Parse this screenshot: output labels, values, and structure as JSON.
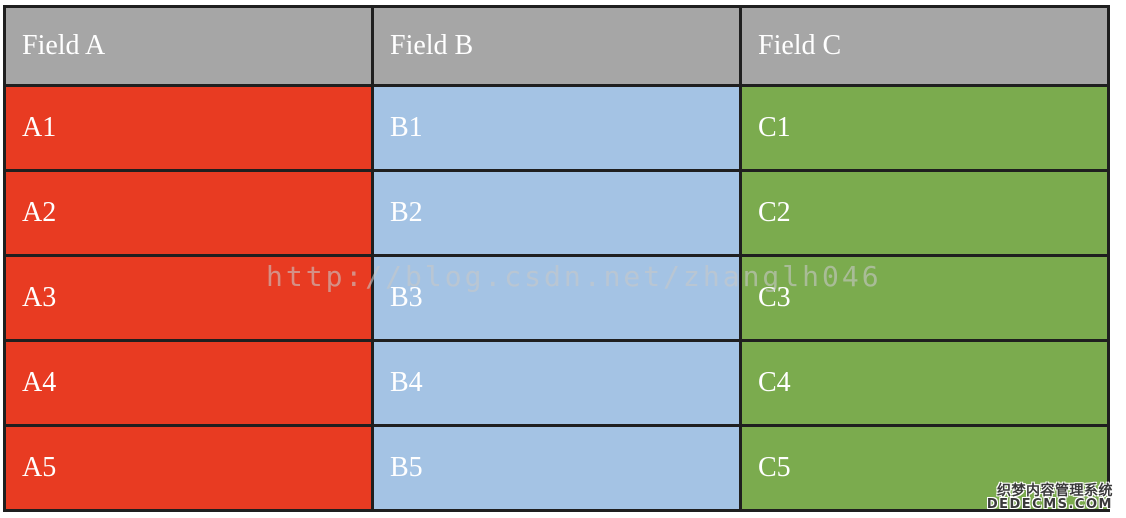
{
  "table": {
    "headers": [
      "Field A",
      "Field B",
      "Field C"
    ],
    "rows": [
      [
        "A1",
        "B1",
        "C1"
      ],
      [
        "A2",
        "B2",
        "C2"
      ],
      [
        "A3",
        "B3",
        "C3"
      ],
      [
        "A4",
        "B4",
        "C4"
      ],
      [
        "A5",
        "B5",
        "C5"
      ]
    ],
    "colors": {
      "header_bg": "#a6a6a6",
      "column_a_bg": "#e83b22",
      "column_b_bg": "#a4c3e4",
      "column_c_bg": "#7bab4e",
      "border": "#1f1f1f",
      "text": "#ffffff"
    }
  },
  "watermarks": {
    "center_url": "http://blog.csdn.net/zhanglh046",
    "bottom_right_line1": "织梦内容管理系统",
    "bottom_right_line2": "DEDECMS.COM"
  }
}
